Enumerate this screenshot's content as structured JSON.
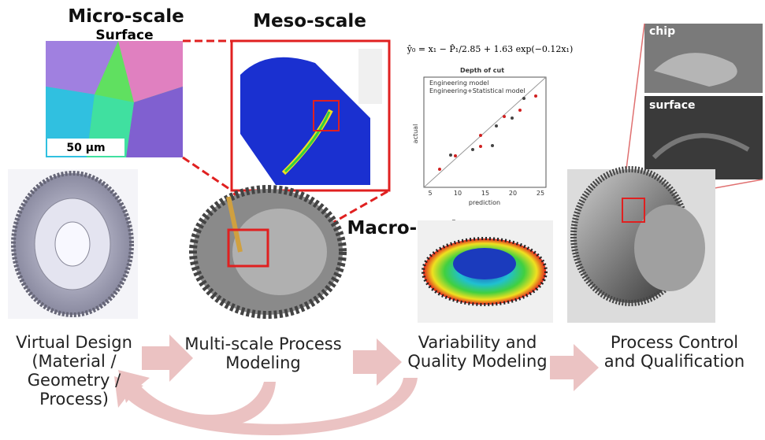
{
  "titles": {
    "micro": "Micro-scale",
    "micro_sub": "Surface",
    "meso": "Meso-scale",
    "macro": "Macro-scale"
  },
  "micro_scale_bar": "50 µm",
  "formula": "ŷ₀ = x₁ − P̂₁/2.85 + 1.63 exp(−0.12x₁)",
  "plot": {
    "title": "Depth of cut",
    "xlabel": "prediction",
    "ylabel": "actual",
    "legend": [
      "Engineering model",
      "Engineering+Statistical model"
    ],
    "xticks": [
      "5",
      "10",
      "15",
      "20",
      "25"
    ]
  },
  "photo_labels": [
    "chip",
    "surface"
  ],
  "stages": [
    {
      "lines": [
        "Virtual Design",
        "(Material /",
        "Geometry /",
        "Process)"
      ]
    },
    {
      "lines": [
        "Multi-scale Process",
        "Modeling"
      ]
    },
    {
      "lines": [
        "Variability and",
        "Quality Modeling"
      ]
    },
    {
      "lines": [
        "Process Control",
        "and Qualification"
      ]
    }
  ]
}
